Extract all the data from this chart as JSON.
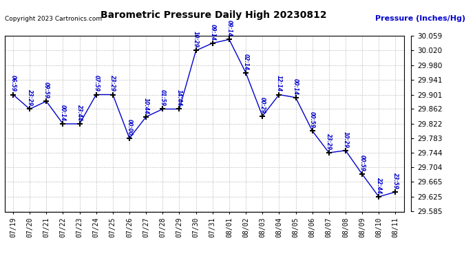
{
  "title": "Barometric Pressure Daily High 20230812",
  "ylabel": "Pressure (Inches/Hg)",
  "copyright": "Copyright 2023 Cartronics.com",
  "dates": [
    "07/19",
    "07/20",
    "07/21",
    "07/22",
    "07/23",
    "07/24",
    "07/25",
    "07/26",
    "07/27",
    "07/28",
    "07/29",
    "07/30",
    "07/31",
    "08/01",
    "08/02",
    "08/03",
    "08/04",
    "08/05",
    "08/06",
    "08/07",
    "08/08",
    "08/09",
    "08/10",
    "08/11"
  ],
  "pressures": [
    29.901,
    29.862,
    29.883,
    29.822,
    29.822,
    29.901,
    29.901,
    29.783,
    29.841,
    29.862,
    29.862,
    30.02,
    30.04,
    30.05,
    29.96,
    29.843,
    29.901,
    29.893,
    29.803,
    29.744,
    29.75,
    29.686,
    29.625,
    29.638
  ],
  "times": [
    "06:59",
    "23:29",
    "09:59",
    "00:14",
    "23:44",
    "07:59",
    "23:29",
    "00:00",
    "10:44",
    "01:59",
    "14:44",
    "10:29",
    "09:14",
    "09:14",
    "02:14",
    "00:29",
    "12:14",
    "00:14",
    "00:59",
    "23:29",
    "10:29",
    "00:59",
    "22:44",
    "23:59"
  ],
  "ylim_min": 29.585,
  "ylim_max": 30.059,
  "yticks": [
    29.585,
    29.625,
    29.665,
    29.704,
    29.744,
    29.783,
    29.822,
    29.862,
    29.901,
    29.941,
    29.98,
    30.02,
    30.059
  ],
  "line_color": "#0000cc",
  "marker_color": "#000000",
  "title_color": "#000000",
  "ylabel_color": "#0000cc",
  "copyright_color": "#000000",
  "label_color": "#0000cc",
  "bg_color": "#ffffff",
  "grid_color": "#bbbbbb"
}
